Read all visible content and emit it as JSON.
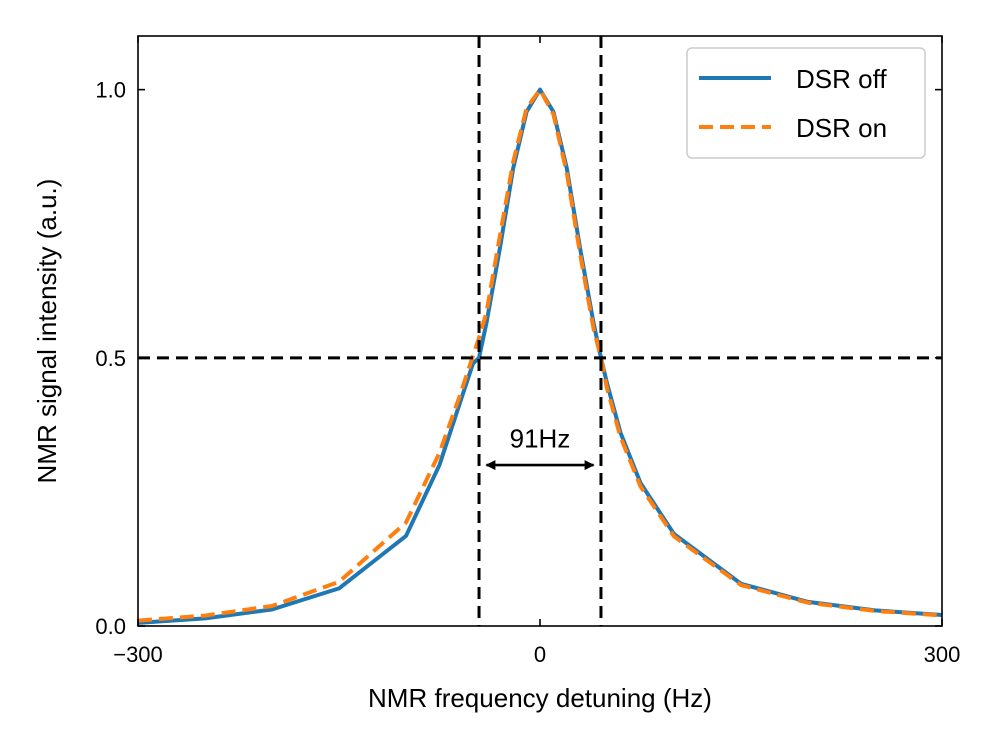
{
  "chart_data": {
    "type": "line",
    "title": "",
    "xlabel": "NMR frequency detuning (Hz)",
    "ylabel": "NMR signal intensity (a.u.)",
    "xlim": [
      -300,
      300
    ],
    "ylim": [
      0,
      1.1
    ],
    "x_ticks": [
      -300,
      0,
      300
    ],
    "x_tick_labels": [
      "−300",
      "0",
      "300"
    ],
    "y_ticks": [
      0.0,
      0.5,
      1.0
    ],
    "y_tick_labels": [
      "0.0",
      "0.5",
      "1.0"
    ],
    "grid": false,
    "legend_position": "top-right",
    "series": [
      {
        "name": "DSR off",
        "color": "#1f77b4",
        "style": "solid",
        "x": [
          -300,
          -250,
          -200,
          -150,
          -100,
          -75,
          -60,
          -50,
          -45.5,
          -40,
          -30,
          -20,
          -10,
          0,
          10,
          20,
          30,
          40,
          45.5,
          50,
          60,
          75,
          100,
          150,
          200,
          250,
          300
        ],
        "y": [
          0.0057,
          0.0142,
          0.0308,
          0.0701,
          0.1679,
          0.3003,
          0.4141,
          0.4894,
          0.5,
          0.5645,
          0.7031,
          0.8534,
          0.9588,
          1.0,
          0.9588,
          0.8534,
          0.7031,
          0.5645,
          0.5,
          0.4527,
          0.3609,
          0.2666,
          0.1715,
          0.0787,
          0.0449,
          0.0291,
          0.0204
        ]
      },
      {
        "name": "DSR on",
        "color": "#ff7f0e",
        "style": "dashed",
        "x": [
          -300,
          -250,
          -200,
          -150,
          -100,
          -75,
          -60,
          -50,
          -45.5,
          -40,
          -30,
          -20,
          -10,
          0,
          10,
          20,
          30,
          40,
          45.5,
          50,
          60,
          75,
          100,
          150,
          200,
          250,
          300
        ],
        "y": [
          0.0101,
          0.0194,
          0.0373,
          0.0823,
          0.1929,
          0.3229,
          0.4281,
          0.5041,
          0.5372,
          0.5843,
          0.7264,
          0.8653,
          0.9656,
          1.0,
          0.9542,
          0.8446,
          0.6926,
          0.5538,
          0.5,
          0.4431,
          0.3529,
          0.2603,
          0.1671,
          0.0763,
          0.0434,
          0.0281,
          0.0196
        ]
      }
    ],
    "reference_lines": {
      "vertical_x": [
        -45.5,
        45.5
      ],
      "horizontal_y": 0.5,
      "color": "#000000",
      "style": "dashed"
    },
    "annotations": [
      {
        "text": "91Hz",
        "x": 0,
        "y": 0.35
      }
    ],
    "arrow": {
      "x_start": -40,
      "x_end": 40,
      "y": 0.3
    }
  }
}
